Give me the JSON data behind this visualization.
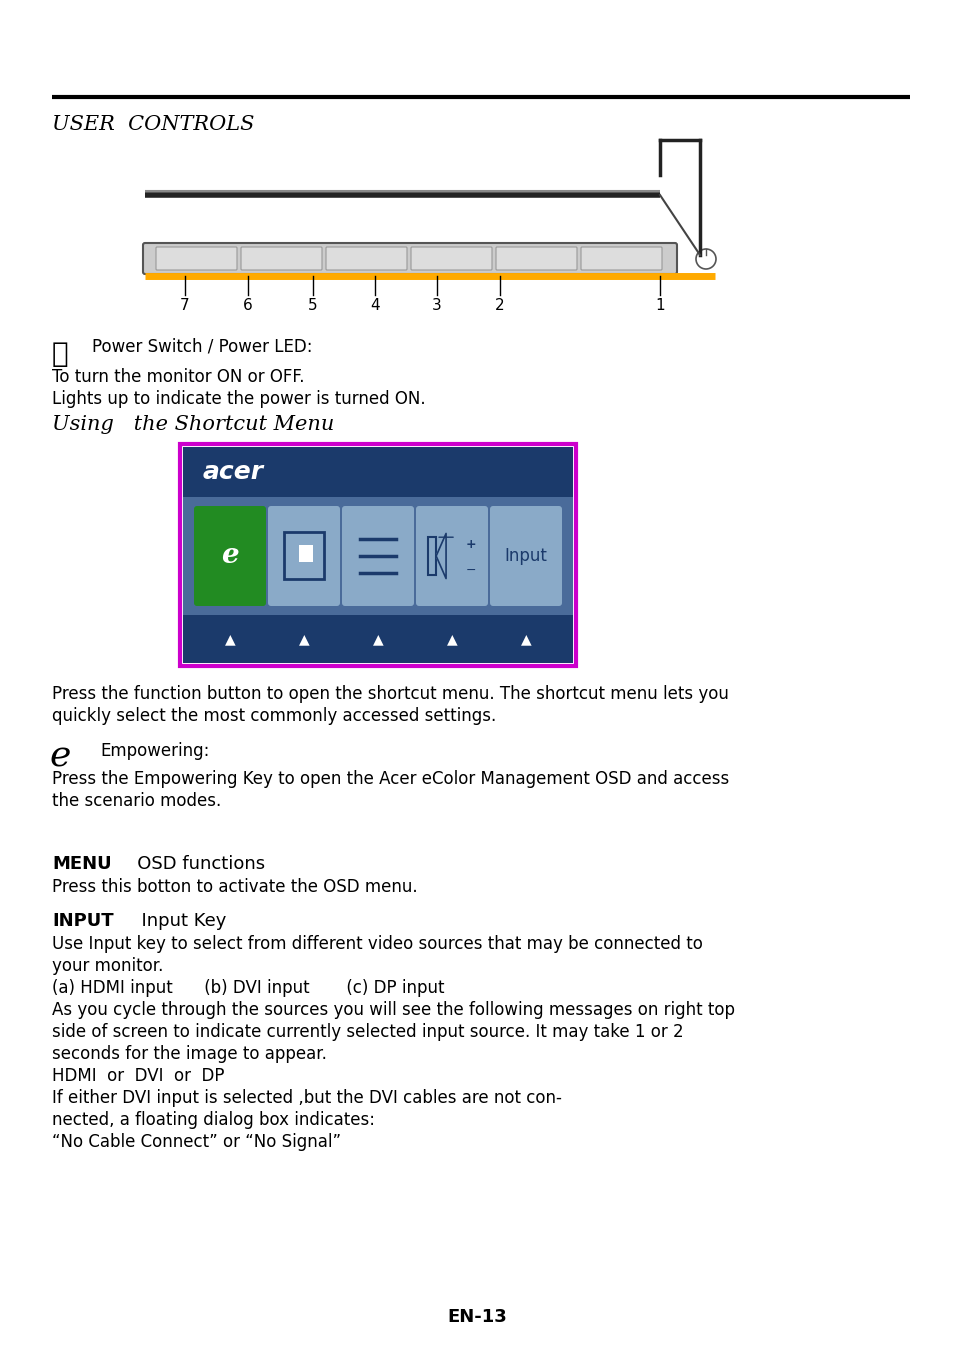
{
  "bg_color": "#ffffff",
  "text_color": "#000000",
  "section_title": "USER  CONTROLS",
  "shortcut_title": "Using   the Shortcut Menu",
  "power_switch_label": "Power Switch / Power LED:",
  "power_line1": "To turn the monitor ON or OFF.",
  "power_line2": "Lights up to indicate the power is turned ON.",
  "empowering_label": "Empowering:",
  "empowering_desc1": "Press the Empowering Key to open the Acer eColor Management OSD and access",
  "empowering_desc2": "the scenario modes.",
  "shortcut_desc1": "Press the function button to open the shortcut menu. The shortcut menu lets you",
  "shortcut_desc2": "quickly select the most commonly accessed settings.",
  "menu_bold": "MENU",
  "menu_text": "   OSD functions",
  "menu_desc": "Press this botton to activate the OSD menu.",
  "input_bold": "INPUT",
  "input_text": "  Input Key",
  "input_desc1": "Use Input key to select from different video sources that may be connected to",
  "input_desc2": "your monitor.",
  "input_desc3": "(a) HDMI input      (b) DVI input       (c) DP input",
  "input_desc4": "As you cycle through the sources you will see the following messages on right top",
  "input_desc5": "side of screen to indicate currently selected input source. It may take 1 or 2",
  "input_desc6": "seconds for the image to appear.",
  "input_desc7": "HDMI  or  DVI  or  DP",
  "input_desc8": "If either DVI input is selected ,but the DVI cables are not con-",
  "input_desc9": "nected, a floating dialog box indicates:",
  "input_desc10": "“No Cable Connect” or “No Signal”",
  "footer": "EN-13",
  "button_numbers": [
    "7",
    "6",
    "5",
    "4",
    "3",
    "2",
    "1"
  ],
  "acer_dark_blue": "#1b3a6b",
  "acer_mid_blue": "#4a6b9a",
  "acer_btn_blue": "#8aaac8",
  "acer_border_magenta": "#cc00cc"
}
